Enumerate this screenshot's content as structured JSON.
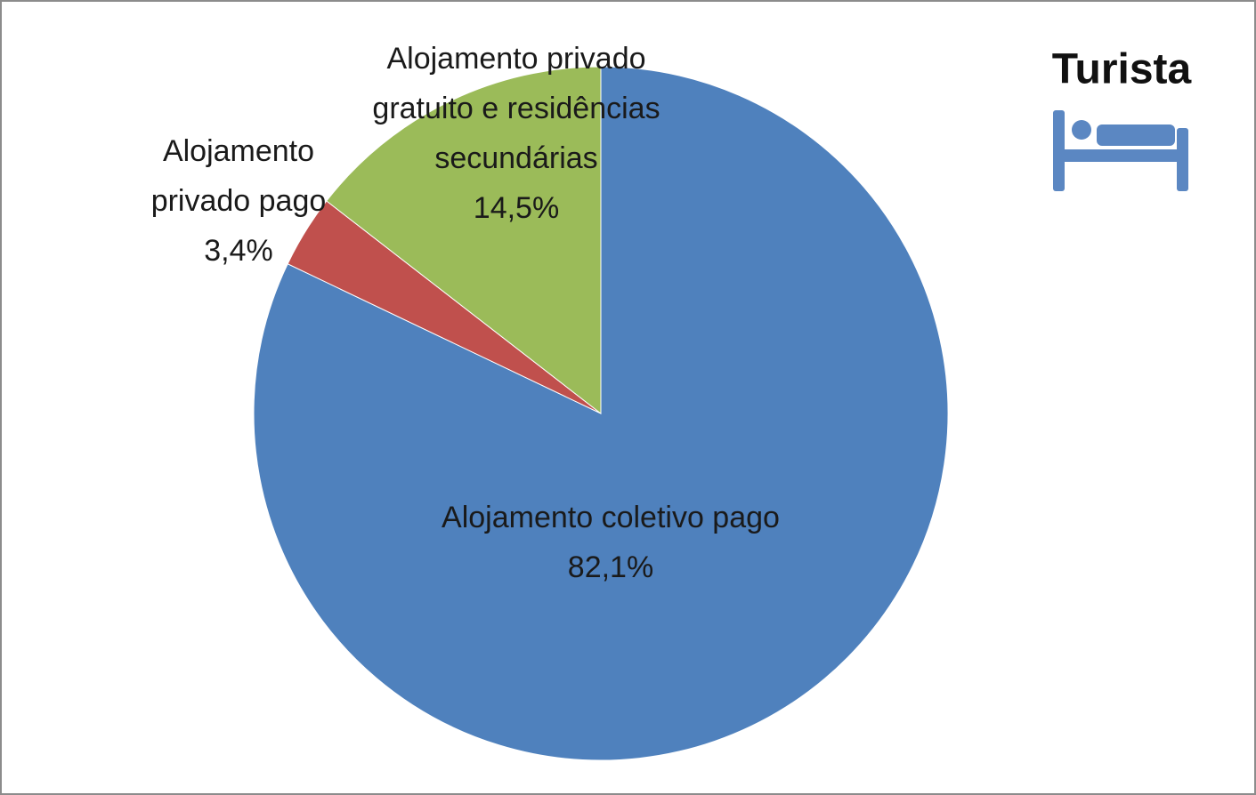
{
  "chart_data": {
    "type": "pie",
    "title": "Turista",
    "categories": [
      "Alojamento coletivo pago",
      "Alojamento privado pago",
      "Alojamento privado gratuito e residências secundárias"
    ],
    "values": [
      82.1,
      3.4,
      14.5
    ],
    "value_labels": [
      "82,1%",
      "3,4%",
      "14,5%"
    ],
    "colors": [
      "#4f81bd",
      "#c0504d",
      "#9bbb59"
    ]
  }
}
